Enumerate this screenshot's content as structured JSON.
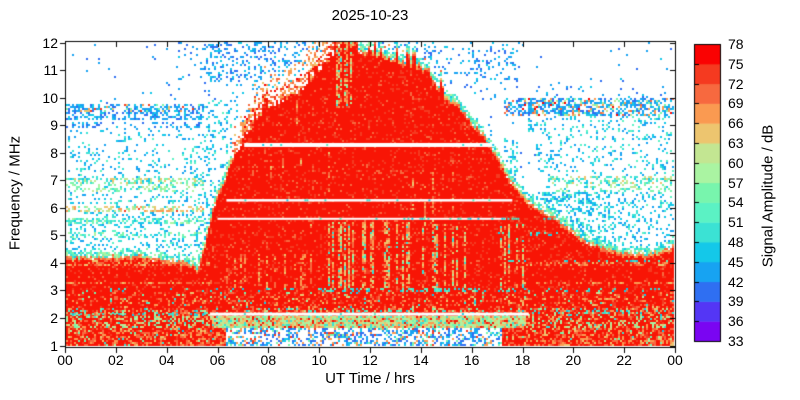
{
  "chart_data": {
    "type": "heatmap",
    "title": "2025-10-23",
    "xlabel": "UT Time / hrs",
    "ylabel": "Frequency / MHz",
    "x_range": [
      0,
      24
    ],
    "y_range": [
      1,
      12
    ],
    "x_ticks": [
      {
        "v": 0,
        "label": "00"
      },
      {
        "v": 2,
        "label": "02"
      },
      {
        "v": 4,
        "label": "04"
      },
      {
        "v": 6,
        "label": "06"
      },
      {
        "v": 8,
        "label": "08"
      },
      {
        "v": 10,
        "label": "10"
      },
      {
        "v": 12,
        "label": "12"
      },
      {
        "v": 14,
        "label": "14"
      },
      {
        "v": 16,
        "label": "16"
      },
      {
        "v": 18,
        "label": "18"
      },
      {
        "v": 20,
        "label": "20"
      },
      {
        "v": 22,
        "label": "22"
      },
      {
        "v": 24,
        "label": "00"
      }
    ],
    "y_ticks": [
      1,
      2,
      3,
      4,
      5,
      6,
      7,
      8,
      9,
      10,
      11,
      12
    ],
    "grid": false,
    "colorbar": {
      "label": "Signal Amplitude / dB",
      "ticks": [
        33,
        36,
        39,
        42,
        45,
        48,
        51,
        54,
        57,
        60,
        63,
        66,
        69,
        72,
        75,
        78
      ],
      "colors_bottom_to_top": [
        "#7a05f2",
        "#5436f5",
        "#2f6ff2",
        "#17a3f2",
        "#14c8e9",
        "#3be2d4",
        "#5bf2c4",
        "#78f5ad",
        "#aaf4a2",
        "#c3e692",
        "#edc56f",
        "#fa9a51",
        "#f7693f",
        "#f53a20",
        "#fa0202"
      ]
    },
    "fof2_envelope_mhz": [
      [
        0,
        4.1
      ],
      [
        0.5,
        4.08
      ],
      [
        1,
        4.05
      ],
      [
        1.5,
        4.1
      ],
      [
        2,
        4.12
      ],
      [
        2.5,
        4.1
      ],
      [
        3,
        4.1
      ],
      [
        3.5,
        4.05
      ],
      [
        4,
        4.0
      ],
      [
        4.5,
        3.95
      ],
      [
        5,
        3.85
      ],
      [
        5.2,
        3.6
      ],
      [
        5.45,
        4.4
      ],
      [
        5.7,
        5.4
      ],
      [
        6,
        6.3
      ],
      [
        6.3,
        7.0
      ],
      [
        6.6,
        7.7
      ],
      [
        7,
        8.45
      ],
      [
        7.5,
        9.15
      ],
      [
        8,
        9.6
      ],
      [
        8.5,
        9.85
      ],
      [
        9,
        10.1
      ],
      [
        9.5,
        10.45
      ],
      [
        10,
        10.9
      ],
      [
        10.4,
        11.3
      ],
      [
        10.8,
        11.9
      ],
      [
        11,
        12.05
      ],
      [
        11.2,
        11.9
      ],
      [
        11.5,
        11.65
      ],
      [
        12,
        11.5
      ],
      [
        12.5,
        11.4
      ],
      [
        13,
        11.3
      ],
      [
        13.5,
        11.15
      ],
      [
        14,
        11.0
      ],
      [
        14.5,
        10.55
      ],
      [
        15,
        9.9
      ],
      [
        15.5,
        9.6
      ],
      [
        16,
        9.0
      ],
      [
        16.5,
        8.5
      ],
      [
        17,
        7.75
      ],
      [
        17.5,
        6.95
      ],
      [
        18,
        6.35
      ],
      [
        18.5,
        5.95
      ],
      [
        19,
        5.65
      ],
      [
        19.5,
        5.35
      ],
      [
        20,
        5.0
      ],
      [
        20.5,
        4.7
      ],
      [
        21,
        4.5
      ],
      [
        21.5,
        4.35
      ],
      [
        22,
        4.25
      ],
      [
        22.5,
        4.2
      ],
      [
        23,
        4.2
      ],
      [
        23.5,
        4.3
      ],
      [
        24,
        4.55
      ]
    ],
    "gap_lines": [
      {
        "freq": 8.28,
        "t0": 7.05,
        "t1": 16.9,
        "w": 4,
        "dots": 0.06
      },
      {
        "freq": 6.27,
        "t0": 6.35,
        "t1": 17.6,
        "w": 2.5,
        "dots": 0.05
      },
      {
        "freq": 5.6,
        "t0": 6.0,
        "t1": 17.35,
        "w": 2,
        "dots": 0.04
      },
      {
        "freq": 2.14,
        "t0": 5.7,
        "t1": 18.25,
        "w": 3,
        "dots": 0.05
      }
    ],
    "dash_overlays": [
      {
        "freq": 5.6,
        "t0": 13.0,
        "t1": 19.8,
        "d": 0.35,
        "pal": "cyan"
      },
      {
        "freq": 2.14,
        "t0": 0.2,
        "t1": 5.7,
        "d": 0.25,
        "pal": "cyangreen"
      }
    ],
    "palettes": {
      "blues": [
        [
          "#2f6ff2",
          3
        ],
        [
          "#17a3f2",
          4
        ],
        [
          "#14c8e9",
          2
        ]
      ],
      "bluecyan": [
        [
          "#17a3f2",
          3
        ],
        [
          "#14c8e9",
          3
        ],
        [
          "#3be2d4",
          2
        ],
        [
          "#5bf2c4",
          1
        ]
      ],
      "cyan": [
        [
          "#3be2d4",
          2
        ],
        [
          "#14c8e9",
          1.5
        ],
        [
          "#5bf2c4",
          1
        ]
      ],
      "cyangreen": [
        [
          "#14c8e9",
          2
        ],
        [
          "#3be2d4",
          3
        ],
        [
          "#5bf2c4",
          2
        ],
        [
          "#78f5ad",
          2
        ],
        [
          "#aaf4a2",
          1
        ]
      ],
      "greencyan": [
        [
          "#78f5ad",
          3
        ],
        [
          "#aaf4a2",
          2
        ],
        [
          "#3be2d4",
          2
        ],
        [
          "#c3e692",
          1
        ],
        [
          "#14c8e9",
          1
        ]
      ],
      "band6": [
        [
          "#78f5ad",
          2
        ],
        [
          "#3be2d4",
          2
        ],
        [
          "#c3e692",
          1.5
        ],
        [
          "#edc56f",
          1
        ],
        [
          "#14c8e9",
          1
        ]
      ],
      "band59": [
        [
          "#edc56f",
          2
        ],
        [
          "#c3e692",
          2
        ],
        [
          "#fa9a51",
          1.2
        ],
        [
          "#78f5ad",
          1
        ],
        [
          "#f53a20",
          0.25
        ],
        [
          "#14c8e9",
          0.8
        ]
      ],
      "nightBand95L": [
        [
          "#17a3f2",
          4
        ],
        [
          "#2f6ff2",
          2
        ],
        [
          "#14c8e9",
          2
        ],
        [
          "#fa9a51",
          0.7
        ],
        [
          "#f53a20",
          0.45
        ],
        [
          "#edc56f",
          0.6
        ],
        [
          "#78f5ad",
          0.5
        ]
      ],
      "nightBand95R": [
        [
          "#17a3f2",
          4
        ],
        [
          "#14c8e9",
          2
        ],
        [
          "#2f6ff2",
          1.5
        ],
        [
          "#fa9a51",
          1
        ],
        [
          "#f7693f",
          0.6
        ],
        [
          "#fa0202",
          0.35
        ],
        [
          "#c3e692",
          0.8
        ],
        [
          "#78f5ad",
          0.8
        ]
      ],
      "morningTex1": [
        [
          "#f7693f",
          3
        ],
        [
          "#fa9a51",
          3
        ],
        [
          "#f53a20",
          2
        ],
        [
          "#edc56f",
          1.5
        ],
        [
          "#fa0202",
          1
        ]
      ],
      "morningTex2": [
        [
          "#fa9a51",
          2
        ],
        [
          "#edc56f",
          1.5
        ],
        [
          "#f7693f",
          1
        ],
        [
          "#17a3f2",
          1
        ],
        [
          "#14c8e9",
          0.7
        ]
      ],
      "streakWarm": [
        [
          "#fa9a51",
          3
        ],
        [
          "#edc56f",
          2.5
        ],
        [
          "#f7693f",
          1.5
        ],
        [
          "#c3e692",
          1.5
        ],
        [
          "#78f5ad",
          1
        ],
        [
          "#3be2d4",
          0.7
        ]
      ],
      "streakOrange": [
        [
          "#f7693f",
          3
        ],
        [
          "#fa9a51",
          2
        ],
        [
          "#edc56f",
          1
        ]
      ],
      "dayLowGreen": [
        [
          "#aaf4a2",
          2.5
        ],
        [
          "#c3e692",
          2
        ],
        [
          "#edc56f",
          2
        ],
        [
          "#78f5ad",
          1.5
        ],
        [
          "#fa9a51",
          1.5
        ],
        [
          "#3be2d4",
          1
        ],
        [
          "#f7693f",
          0.8
        ]
      ],
      "dayAbsorb": [
        [
          "#2f6ff2",
          2.5
        ],
        [
          "#17a3f2",
          2
        ],
        [
          "#78f5ad",
          1
        ],
        [
          "#fa9a51",
          1
        ],
        [
          "#f53a20",
          0.7
        ],
        [
          "#14c8e9",
          0.7
        ]
      ],
      "nightLow": [
        [
          "#f7693f",
          2
        ],
        [
          "#fa9a51",
          1.5
        ],
        [
          "#edc56f",
          0.8
        ]
      ],
      "reds": [
        [
          "#f81505",
          8.5
        ],
        [
          "#f53a20",
          1.1
        ],
        [
          "#f7693f",
          0.4
        ]
      ]
    },
    "noise_bands_above_envelope": [
      {
        "t": [
          6.6,
          10.9
        ],
        "rel": 1,
        "f": [
          0,
          0.55
        ],
        "d": 0.55,
        "pal": "morningTex1"
      },
      {
        "t": [
          6.6,
          10.9
        ],
        "rel": 1,
        "f": [
          0.55,
          1.15
        ],
        "d": 0.28,
        "pal": "morningTex2"
      },
      {
        "t": [
          10.9,
          15
        ],
        "rel": 1,
        "f": [
          0,
          0.5
        ],
        "d": 0.18,
        "pal": "morningTex2"
      },
      {
        "t": [
          4.4,
          5.5
        ],
        "f": [
          10.6,
          12
        ],
        "d": 0.1,
        "pal": "blues"
      },
      {
        "t": [
          5.5,
          8.0
        ],
        "f": [
          10.6,
          12
        ],
        "d": 0.3,
        "pal": "blues"
      },
      {
        "t": [
          8.0,
          14.5
        ],
        "f": [
          10.6,
          12
        ],
        "d": 0.22,
        "pal": "blues"
      },
      {
        "t": [
          14.5,
          17.9
        ],
        "f": [
          10.6,
          12
        ],
        "d": 0.13,
        "pal": "blues"
      },
      {
        "t": [
          5.5,
          17.9
        ],
        "f": [
          9.9,
          10.6
        ],
        "d": 0.06,
        "pal": "blues"
      },
      {
        "t": [
          4.95,
          5.55
        ],
        "f": [
          3.55,
          4.45
        ],
        "d": 0.2,
        "pal": "cyangreen"
      },
      {
        "t": [
          5.5,
          6.8
        ],
        "f": [
          4.4,
          9.9
        ],
        "d": 0.2,
        "pal": "bluecyan"
      },
      {
        "t": [
          0,
          5.6
        ],
        "f": [
          9.45,
          9.78
        ],
        "d": 0.5,
        "pal": "nightBand95L"
      },
      {
        "t": [
          0,
          5.6
        ],
        "f": [
          9.18,
          9.45
        ],
        "d": 0.42,
        "pal": "blues"
      },
      {
        "t": [
          0,
          5.6
        ],
        "f": [
          8.88,
          9.12
        ],
        "d": 0.22,
        "pal": "blues"
      },
      {
        "t": [
          0,
          5.6
        ],
        "f": [
          8.0,
          8.88
        ],
        "d": 0.1,
        "pal": "bluecyan"
      },
      {
        "t": [
          0,
          5.6
        ],
        "f": [
          7.1,
          8.0
        ],
        "d": 0.13,
        "pal": "bluecyan"
      },
      {
        "t": [
          0,
          5.6
        ],
        "f": [
          6.85,
          7.1
        ],
        "d": 0.5,
        "pal": "band6"
      },
      {
        "t": [
          0,
          5.6
        ],
        "f": [
          6.55,
          6.85
        ],
        "d": 0.33,
        "pal": "greencyan"
      },
      {
        "t": [
          0,
          5.6
        ],
        "f": [
          6.1,
          6.55
        ],
        "d": 0.16,
        "pal": "bluecyan"
      },
      {
        "t": [
          0,
          5.6
        ],
        "f": [
          5.88,
          6.1
        ],
        "d": 0.4,
        "pal": "band59"
      },
      {
        "t": [
          0,
          5.6
        ],
        "f": [
          5.65,
          5.88
        ],
        "d": 0.18,
        "pal": "bluecyan"
      },
      {
        "t": [
          0,
          5.6
        ],
        "f": [
          5.42,
          5.65
        ],
        "d": 0.5,
        "pal": "cyangreen"
      },
      {
        "t": [
          0,
          5.6
        ],
        "f": [
          5.12,
          5.42
        ],
        "d": 0.2,
        "pal": "bluecyan"
      },
      {
        "t": [
          0,
          5.6
        ],
        "f": [
          4.92,
          5.12
        ],
        "d": 0.33,
        "pal": "cyangreen"
      },
      {
        "t": [
          0,
          5.6
        ],
        "f": [
          4.1,
          4.92
        ],
        "d": 0.24,
        "pal": "bluecyan"
      },
      {
        "t": [
          17.3,
          24
        ],
        "f": [
          9.35,
          9.95
        ],
        "d": 0.55,
        "pal": "nightBand95R"
      },
      {
        "t": [
          18.5,
          24
        ],
        "f": [
          9.95,
          10.45
        ],
        "d": 0.07,
        "pal": "blues"
      },
      {
        "t": [
          18.2,
          24
        ],
        "f": [
          8.6,
          9.35
        ],
        "d": 0.18,
        "pal": "bluecyan"
      },
      {
        "t": [
          18.5,
          24
        ],
        "f": [
          7.15,
          8.6
        ],
        "d": 0.14,
        "pal": "bluecyan"
      },
      {
        "t": [
          19.0,
          24
        ],
        "f": [
          6.88,
          7.15
        ],
        "d": 0.42,
        "pal": "band6"
      },
      {
        "t": [
          19.2,
          24
        ],
        "f": [
          6.55,
          6.88
        ],
        "d": 0.3,
        "pal": "greencyan"
      },
      {
        "t": [
          17.3,
          19.8
        ],
        "f": [
          5.52,
          5.72
        ],
        "d": 0.5,
        "pal": "cyan"
      },
      {
        "t": [
          17.3,
          17.8
        ],
        "f": [
          4.3,
          8.6
        ],
        "d": 0.25,
        "pal": "bluecyan"
      },
      {
        "t": [
          17.8,
          21.3
        ],
        "f": [
          4.3,
          6.55
        ],
        "d": 0.38,
        "pal": "bluecyan"
      },
      {
        "t": [
          21.3,
          24
        ],
        "f": [
          4.2,
          6.55
        ],
        "d": 0.2,
        "pal": "bluecyan"
      }
    ],
    "body_texture_bands": [
      {
        "f": [
          1.6,
          2.05
        ],
        "t": [
          5.8,
          18.1
        ],
        "base": "red",
        "specks": [
          [
            "dayLowGreen",
            0.9
          ]
        ]
      },
      {
        "f": [
          1.6,
          2.05
        ],
        "base": "red",
        "specks": [
          [
            "dayLowGreen",
            0.38
          ]
        ]
      },
      {
        "f": [
          1.0,
          1.6
        ],
        "t": [
          6.3,
          17.2
        ],
        "base": "white",
        "specks": [
          [
            "dayAbsorb",
            0.45
          ]
        ]
      },
      {
        "f": [
          1.0,
          1.6
        ],
        "base": "red",
        "specks": [
          [
            "nightLow",
            0.3
          ],
          [
            "greencyan",
            0.05
          ]
        ]
      },
      {
        "f": [
          2.05,
          2.33
        ],
        "base": "red",
        "specks": [
          [
            "cyan",
            0.1
          ],
          [
            "greencyan",
            0.08
          ],
          [
            "streakOrange",
            0.22
          ]
        ]
      },
      {
        "f": [
          2.95,
          3.08
        ],
        "t": [
          10,
          18.3
        ],
        "base": "red",
        "specks": [
          [
            "cyan",
            0.3
          ],
          [
            "greencyan",
            0.08
          ]
        ]
      },
      {
        "f": [
          2.95,
          3.08
        ],
        "base": "red",
        "specks": [
          [
            "cyan",
            0.12
          ]
        ]
      },
      {
        "f": [
          4.0,
          4.1
        ],
        "t": [
          17.3,
          24
        ],
        "base": "red",
        "specks": [
          [
            "cyan",
            0.3
          ]
        ]
      },
      {
        "f": [
          5.0,
          5.12
        ],
        "t": [
          17.0,
          19.6
        ],
        "base": "red",
        "specks": [
          [
            "cyan",
            0.22
          ]
        ]
      },
      {
        "f": [
          2.33,
          2.95
        ],
        "base": "red",
        "specks": [
          [
            "streakOrange",
            0.13
          ],
          [
            "greencyan",
            0.03
          ]
        ]
      }
    ],
    "vertical_streaks": [
      {
        "t": [
          10.3,
          14
        ],
        "f": [
          3.1,
          5.45
        ],
        "pcol": 0.5,
        "d": 0.7,
        "pal": "streakWarm"
      },
      {
        "t": [
          14,
          18.2
        ],
        "f": [
          3.0,
          5.4
        ],
        "pcol": 0.22,
        "d": 0.6,
        "pal": "streakWarm"
      },
      {
        "t": [
          6.3,
          10.3
        ],
        "f": [
          2.2,
          4.3
        ],
        "pcol": 0.28,
        "d": 0.5,
        "pal": "streakOrange"
      },
      {
        "t": [
          8,
          16.5
        ],
        "f": [
          4.5,
          0
        ],
        "seg": 1,
        "pcol": 0.15,
        "d": 0.45,
        "pal": "streakOrange"
      },
      {
        "t": [
          10.55,
          11.35
        ],
        "f": [
          9.6,
          12.1
        ],
        "pcol": 0.55,
        "d": 0.6,
        "pal": "streakWarm"
      }
    ]
  }
}
